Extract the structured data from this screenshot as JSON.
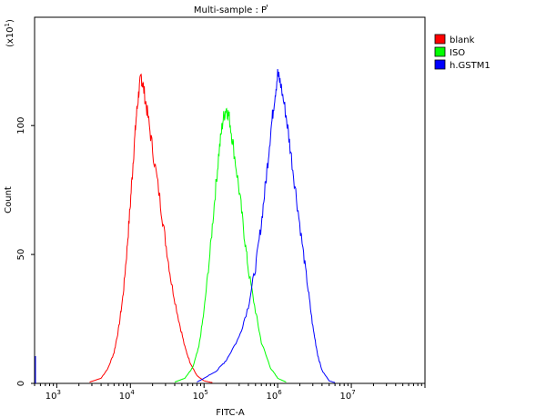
{
  "chart_data": {
    "type": "line",
    "title": "Multi-sample : P",
    "xlabel": "FITC-A",
    "ylabel": "Count",
    "y_multiplier": "(x10",
    "y_multiplier_exp": "1",
    "x_scale": "log",
    "xlim": [
      500,
      100000000
    ],
    "ylim": [
      0,
      142
    ],
    "grid": false,
    "legend_position": "top-right",
    "x_ticks": [
      {
        "base": "10",
        "exp": "3",
        "value": 1000
      },
      {
        "base": "10",
        "exp": "4",
        "value": 10000
      },
      {
        "base": "10",
        "exp": "5",
        "value": 100000
      },
      {
        "base": "10",
        "exp": "6",
        "value": 1000000
      },
      {
        "base": "10",
        "exp": "7",
        "value": 10000000
      }
    ],
    "y_ticks": [
      {
        "label": "0",
        "value": 0
      },
      {
        "label": "50",
        "value": 50
      },
      {
        "label": "100",
        "value": 100
      }
    ],
    "series": [
      {
        "name": "blank",
        "color": "#ff0000",
        "points": [
          [
            2800,
            0.5
          ],
          [
            4000,
            2
          ],
          [
            5000,
            6
          ],
          [
            6000,
            12
          ],
          [
            7000,
            22
          ],
          [
            8000,
            35
          ],
          [
            9000,
            52
          ],
          [
            10000,
            70
          ],
          [
            11000,
            88
          ],
          [
            12000,
            103
          ],
          [
            13000,
            113
          ],
          [
            14000,
            119
          ],
          [
            15000,
            115
          ],
          [
            17000,
            105
          ],
          [
            20000,
            91
          ],
          [
            25000,
            72
          ],
          [
            30000,
            55
          ],
          [
            36000,
            39
          ],
          [
            45000,
            25
          ],
          [
            55000,
            14
          ],
          [
            65000,
            8
          ],
          [
            80000,
            3
          ],
          [
            100000,
            1
          ],
          [
            130000,
            0.3
          ]
        ]
      },
      {
        "name": "ISO",
        "color": "#00ff00",
        "points": [
          [
            40000,
            0.5
          ],
          [
            55000,
            2
          ],
          [
            70000,
            6
          ],
          [
            85000,
            14
          ],
          [
            100000,
            28
          ],
          [
            120000,
            50
          ],
          [
            140000,
            72
          ],
          [
            160000,
            90
          ],
          [
            180000,
            102
          ],
          [
            200000,
            107
          ],
          [
            220000,
            103
          ],
          [
            250000,
            92
          ],
          [
            300000,
            75
          ],
          [
            350000,
            58
          ],
          [
            400000,
            44
          ],
          [
            500000,
            28
          ],
          [
            600000,
            16
          ],
          [
            800000,
            6
          ],
          [
            1000000,
            2
          ],
          [
            1300000,
            0.5
          ]
        ]
      },
      {
        "name": "h.GSTM1",
        "color": "#0000ff",
        "points": [
          [
            80000,
            0.5
          ],
          [
            100000,
            2
          ],
          [
            150000,
            5
          ],
          [
            200000,
            9
          ],
          [
            300000,
            18
          ],
          [
            400000,
            30
          ],
          [
            500000,
            45
          ],
          [
            600000,
            62
          ],
          [
            700000,
            80
          ],
          [
            800000,
            97
          ],
          [
            900000,
            110
          ],
          [
            1000000,
            120
          ],
          [
            1100000,
            116
          ],
          [
            1300000,
            104
          ],
          [
            1500000,
            90
          ],
          [
            1800000,
            72
          ],
          [
            2200000,
            52
          ],
          [
            2600000,
            36
          ],
          [
            3000000,
            22
          ],
          [
            3500000,
            11
          ],
          [
            4000000,
            5
          ],
          [
            5000000,
            1
          ],
          [
            6000000,
            0.3
          ]
        ]
      }
    ]
  }
}
